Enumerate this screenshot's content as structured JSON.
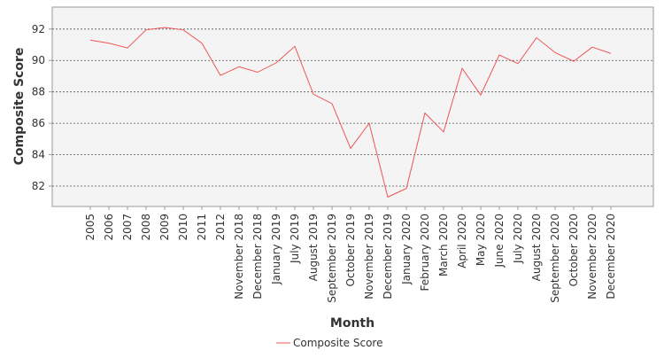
{
  "chart_data": {
    "type": "line",
    "xlabel": "Month",
    "ylabel": "Composite Score",
    "ylim": [
      80.7,
      93.4
    ],
    "yticks": [
      82,
      84,
      86,
      88,
      90,
      92
    ],
    "grid": true,
    "legend_position": "bottom",
    "categories": [
      "2005",
      "2006",
      "2007",
      "2008",
      "2009",
      "2010",
      "2011",
      "2012",
      "November 2018",
      "December 2018",
      "January 2019",
      "July 2019",
      "August 2019",
      "September 2019",
      "October 2019",
      "November 2019",
      "December 2019",
      "January 2020",
      "February 2020",
      "March 2020",
      "April 2020",
      "May 2020",
      "June 2020",
      "July 2020",
      "August 2020",
      "September 2020",
      "October 2020",
      "November 2020",
      "December 2020"
    ],
    "series": [
      {
        "name": "Composite Score",
        "color": "#ee5555",
        "values": [
          91.3,
          91.1,
          90.8,
          91.95,
          92.1,
          91.95,
          91.1,
          89.05,
          89.6,
          89.25,
          89.85,
          90.9,
          87.85,
          87.25,
          84.4,
          86.0,
          81.3,
          81.85,
          86.65,
          85.45,
          89.5,
          87.8,
          90.35,
          89.8,
          91.45,
          90.5,
          89.95,
          90.85,
          90.45
        ]
      }
    ]
  }
}
